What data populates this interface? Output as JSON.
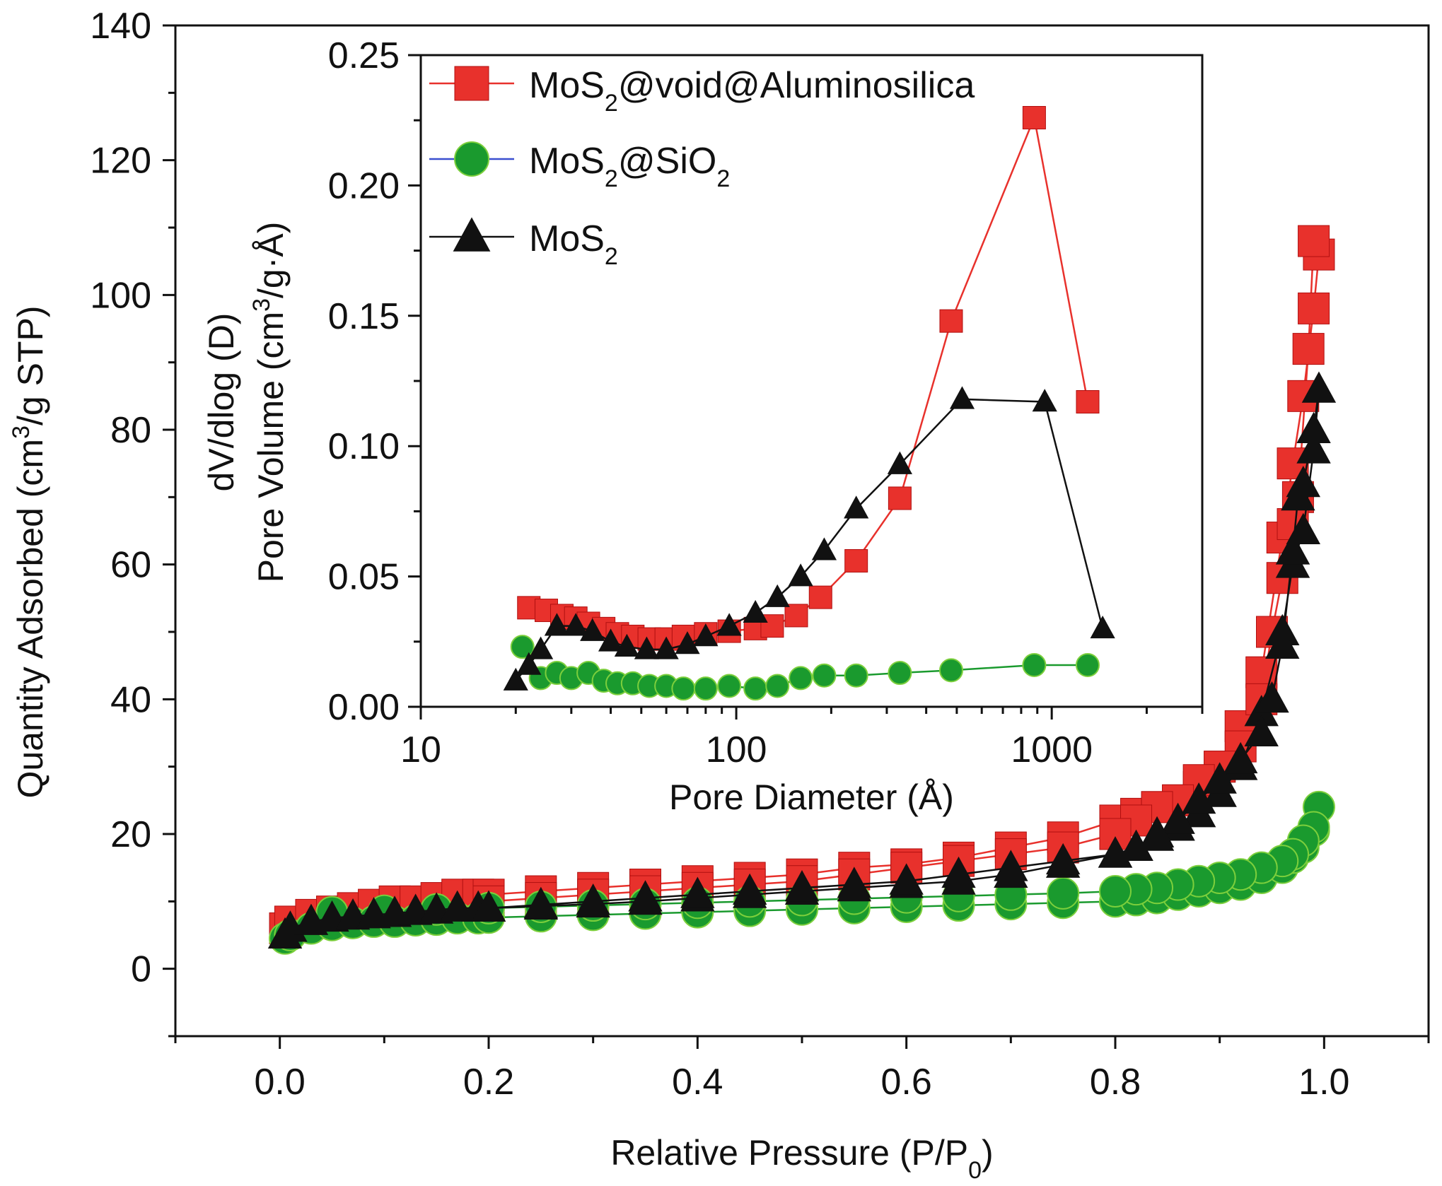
{
  "chart_data": [
    {
      "type": "line",
      "role": "main",
      "xlabel_parts": [
        "Relative Pressure (P/P",
        "0",
        ")"
      ],
      "ylabel_parts": [
        "Quantity Adsorbed (cm",
        "3",
        "/g STP)"
      ],
      "xlim": [
        -0.1,
        1.1
      ],
      "ylim": [
        -10,
        140
      ],
      "xticks": [
        "0.0",
        "0.2",
        "0.4",
        "0.6",
        "0.8",
        "1.0"
      ],
      "yticks": [
        "0",
        "20",
        "40",
        "60",
        "80",
        "100",
        "120",
        "140"
      ],
      "series": [
        {
          "name": "MoS2@void@Aluminosilica",
          "color": "#e8312c",
          "marker": "square",
          "x": [
            0.005,
            0.01,
            0.03,
            0.05,
            0.07,
            0.09,
            0.11,
            0.13,
            0.15,
            0.17,
            0.19,
            0.2,
            0.25,
            0.3,
            0.35,
            0.4,
            0.45,
            0.5,
            0.55,
            0.6,
            0.65,
            0.7,
            0.75,
            0.8,
            0.82,
            0.84,
            0.86,
            0.88,
            0.9,
            0.92,
            0.94,
            0.96,
            0.97,
            0.98,
            0.99,
            0.995,
            0.99,
            0.985,
            0.975,
            0.97,
            0.96,
            0.95,
            0.94,
            0.92,
            0.9,
            0.88,
            0.86,
            0.84,
            0.82,
            0.8,
            0.75,
            0.7,
            0.65,
            0.6,
            0.55,
            0.5,
            0.45,
            0.4,
            0.35,
            0.3,
            0.25,
            0.2
          ],
          "y": [
            6,
            7,
            8,
            8.5,
            9,
            9.5,
            10,
            10,
            10.5,
            11,
            11,
            11,
            11.5,
            12,
            12.5,
            13,
            13.5,
            14,
            15,
            15.5,
            16.5,
            18,
            19.5,
            22,
            23,
            24,
            25,
            27,
            30,
            36,
            44,
            64,
            75,
            85,
            98,
            106,
            108,
            92,
            70,
            66,
            58,
            50,
            40,
            33,
            30,
            28,
            25,
            24,
            22,
            20,
            18,
            17,
            16,
            15,
            14,
            13,
            12.5,
            12,
            11.5,
            11,
            10.5,
            10
          ]
        },
        {
          "name": "MoS2@SiO2",
          "color": "#1a9a2e",
          "marker": "circle",
          "x": [
            0.005,
            0.01,
            0.03,
            0.05,
            0.07,
            0.09,
            0.11,
            0.13,
            0.15,
            0.17,
            0.19,
            0.2,
            0.25,
            0.3,
            0.35,
            0.4,
            0.45,
            0.5,
            0.55,
            0.6,
            0.65,
            0.7,
            0.75,
            0.8,
            0.82,
            0.84,
            0.86,
            0.88,
            0.9,
            0.92,
            0.94,
            0.96,
            0.97,
            0.98,
            0.99,
            0.995,
            0.99,
            0.98,
            0.97,
            0.96,
            0.94,
            0.92,
            0.9,
            0.88,
            0.86,
            0.84,
            0.82,
            0.8,
            0.75,
            0.7,
            0.65,
            0.6,
            0.55,
            0.5,
            0.45,
            0.4,
            0.35,
            0.3,
            0.25,
            0.2,
            0.15,
            0.1,
            0.05
          ],
          "y": [
            4.5,
            5,
            6,
            6.5,
            6.8,
            7,
            7,
            7.2,
            7.3,
            7.5,
            7.5,
            7.6,
            7.8,
            8,
            8.2,
            8.4,
            8.6,
            8.8,
            9,
            9.2,
            9.4,
            9.6,
            9.8,
            10,
            10.2,
            10.5,
            11,
            11.5,
            12,
            12.5,
            13.5,
            15,
            16.5,
            18,
            20.5,
            24,
            21,
            19,
            17,
            16,
            15,
            14,
            13.5,
            13,
            12.5,
            12,
            11.8,
            11.5,
            11.2,
            11,
            10.8,
            10.6,
            10.4,
            10.2,
            10,
            9.8,
            9.6,
            9.4,
            9.2,
            9,
            8.8,
            8.6,
            8.4
          ]
        },
        {
          "name": "MoS2",
          "color": "#111111",
          "marker": "triangle",
          "x": [
            0.005,
            0.01,
            0.03,
            0.05,
            0.07,
            0.09,
            0.11,
            0.13,
            0.15,
            0.17,
            0.19,
            0.2,
            0.25,
            0.3,
            0.35,
            0.4,
            0.45,
            0.5,
            0.55,
            0.6,
            0.65,
            0.7,
            0.75,
            0.8,
            0.82,
            0.84,
            0.86,
            0.88,
            0.9,
            0.92,
            0.94,
            0.96,
            0.97,
            0.98,
            0.99,
            0.995,
            0.99,
            0.98,
            0.975,
            0.97,
            0.96,
            0.95,
            0.94,
            0.92,
            0.9,
            0.88,
            0.86,
            0.84,
            0.82,
            0.8,
            0.75,
            0.7,
            0.65,
            0.6,
            0.55,
            0.5,
            0.45,
            0.4,
            0.35,
            0.3,
            0.25,
            0.2
          ],
          "y": [
            5,
            6,
            7,
            7.5,
            7.8,
            8,
            8.2,
            8.5,
            8.7,
            9,
            9,
            9,
            9.3,
            9.6,
            10,
            10.5,
            11,
            11.5,
            12,
            12.5,
            13,
            14,
            15.5,
            17,
            18,
            19.5,
            21,
            23,
            26,
            30,
            38,
            50,
            60,
            65,
            77,
            86,
            80,
            72,
            70,
            62,
            48,
            40,
            35,
            31,
            28,
            25,
            22,
            20,
            18,
            17,
            16,
            15,
            14,
            13,
            12.5,
            12,
            11.5,
            11,
            10.5,
            10,
            9.5,
            9
          ]
        }
      ]
    },
    {
      "type": "line",
      "role": "inset",
      "xscale": "log",
      "xlabel": "Pore Diameter (Å)",
      "ylabel_line1": "dV/dlog (D)",
      "ylabel_line2_parts": [
        "Pore Volume (cm",
        "3",
        "/g·Å)"
      ],
      "xlim": [
        10,
        3000
      ],
      "ylim": [
        0,
        0.25
      ],
      "xticks": [
        "10",
        "100",
        "1000"
      ],
      "yticks": [
        "0.00",
        "0.05",
        "0.10",
        "0.15",
        "0.20",
        "0.25"
      ],
      "series": [
        {
          "name": "MoS2@void@Aluminosilica",
          "color": "#e8312c",
          "marker": "square",
          "x": [
            22,
            25,
            28,
            31,
            34,
            38,
            42,
            47,
            53,
            60,
            68,
            80,
            95,
            115,
            130,
            155,
            185,
            240,
            330,
            480,
            880,
            1300
          ],
          "y": [
            0.038,
            0.037,
            0.035,
            0.034,
            0.032,
            0.03,
            0.028,
            0.027,
            0.026,
            0.026,
            0.027,
            0.028,
            0.029,
            0.03,
            0.031,
            0.035,
            0.042,
            0.056,
            0.08,
            0.148,
            0.226,
            0.117
          ]
        },
        {
          "name": "MoS2@SiO2",
          "color": "#1a9a2e",
          "marker": "circle",
          "x": [
            21,
            24,
            27,
            30,
            34,
            38,
            42,
            47,
            53,
            60,
            68,
            80,
            95,
            115,
            135,
            160,
            190,
            240,
            330,
            480,
            880,
            1300
          ],
          "y": [
            0.023,
            0.011,
            0.013,
            0.011,
            0.013,
            0.01,
            0.009,
            0.009,
            0.008,
            0.008,
            0.007,
            0.007,
            0.008,
            0.007,
            0.008,
            0.011,
            0.012,
            0.012,
            0.013,
            0.014,
            0.016,
            0.016
          ]
        },
        {
          "name": "MoS2",
          "color": "#111111",
          "marker": "triangle",
          "x": [
            20,
            22,
            24,
            27,
            31,
            35,
            40,
            45,
            52,
            60,
            70,
            80,
            95,
            115,
            135,
            160,
            190,
            240,
            330,
            520,
            950,
            1450
          ],
          "y": [
            0.01,
            0.016,
            0.022,
            0.031,
            0.031,
            0.029,
            0.025,
            0.023,
            0.022,
            0.022,
            0.024,
            0.027,
            0.031,
            0.036,
            0.042,
            0.05,
            0.06,
            0.076,
            0.093,
            0.118,
            0.117,
            0.03
          ]
        }
      ]
    }
  ],
  "legend": {
    "position": "inset top-left",
    "entries": [
      {
        "series": "MoS2@void@Aluminosilica",
        "parts": [
          "MoS",
          "2",
          "@void@Aluminosilica"
        ],
        "color": "#e8312c",
        "line_color": "#e8312c",
        "marker": "square"
      },
      {
        "series": "MoS2@SiO2",
        "parts": [
          "MoS",
          "2",
          "@SiO",
          "2",
          ""
        ],
        "color": "#1a9a2e",
        "line_color": "#3a4fcf",
        "marker": "circle"
      },
      {
        "series": "MoS2",
        "parts": [
          "MoS",
          "2",
          ""
        ],
        "color": "#111111",
        "line_color": "#111111",
        "marker": "triangle"
      }
    ]
  }
}
